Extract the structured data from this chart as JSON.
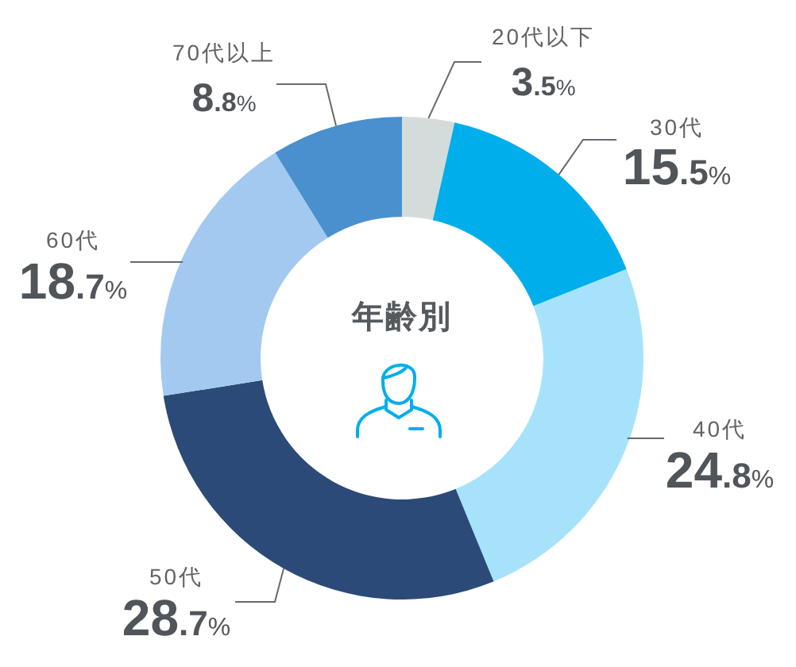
{
  "chart_data": {
    "type": "donut",
    "title": "年齢別",
    "categories": [
      "20代以下",
      "30代",
      "40代",
      "50代",
      "60代",
      "70代以上"
    ],
    "values": [
      3.5,
      15.5,
      24.8,
      28.7,
      18.7,
      8.8
    ],
    "colors": [
      "#d4dcdb",
      "#00aeeb",
      "#a6e3fa",
      "#2c4a78",
      "#a3c9f1",
      "#4a90cf"
    ],
    "value_labels": [
      "3.5%",
      "15.5%",
      "24.8%",
      "28.7%",
      "18.7%",
      "8.8%"
    ]
  }
}
